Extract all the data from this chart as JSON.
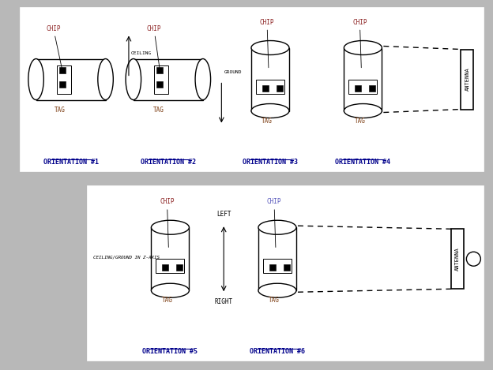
{
  "bg_color": "#b8b8b8",
  "text_color_chip": "#8B2020",
  "text_color_chip6": "#5555bb",
  "text_color_tag": "#7B3B10",
  "text_color_orient": "#00008B",
  "orientation_labels": [
    "ORIENTATION #1",
    "ORIENTATION #2",
    "ORIENTATION #3",
    "ORIENTATION #4"
  ],
  "orientation_labels2": [
    "ORIENTATION #5",
    "ORIENTATION #6"
  ]
}
